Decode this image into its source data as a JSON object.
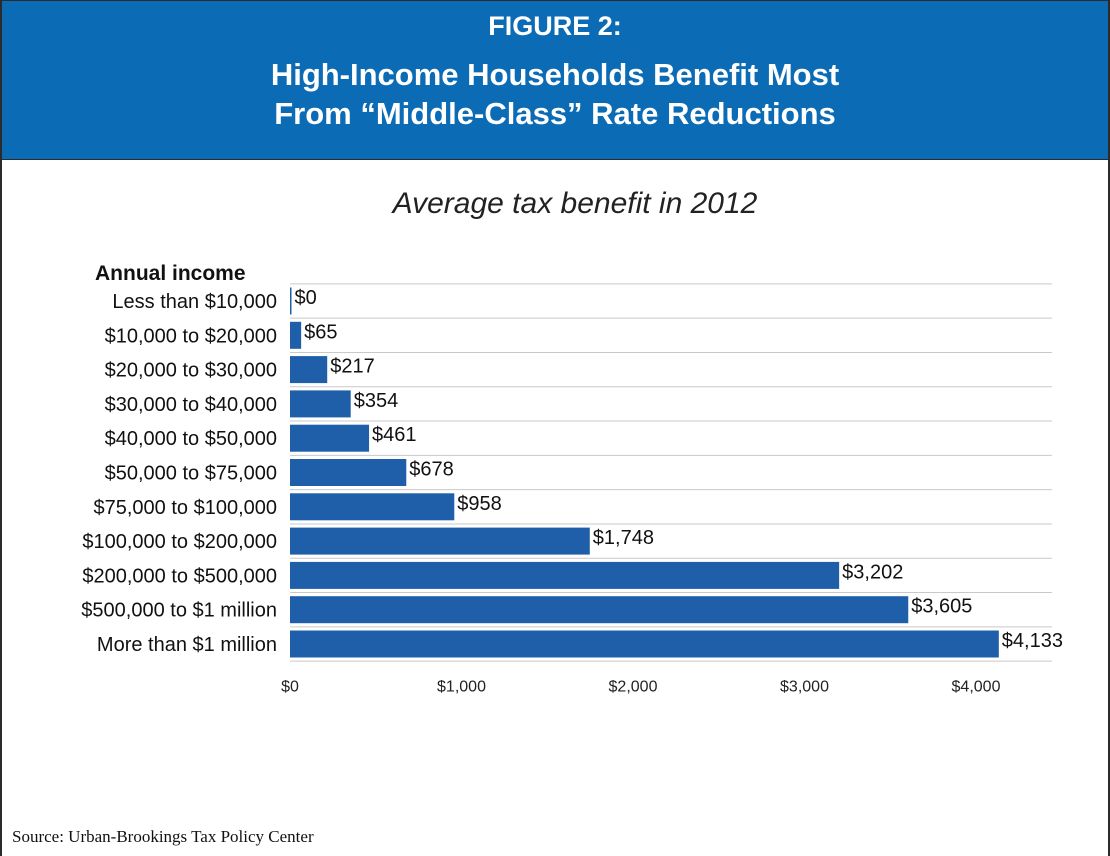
{
  "header": {
    "figure_label": "FIGURE 2:",
    "title_line1": "High-Income Households Benefit Most",
    "title_line2": "From “Middle-Class” Rate Reductions",
    "background_color": "#0c6bb5",
    "text_color": "#ffffff"
  },
  "source": "Source: Urban-Brookings Tax Policy Center",
  "chart_data": {
    "type": "bar",
    "orientation": "horizontal",
    "title": "Average tax benefit in 2012",
    "ylabel": "Annual income",
    "xlabel": "",
    "categories": [
      "Less than $10,000",
      "$10,000 to $20,000",
      "$20,000 to $30,000",
      "$30,000 to $40,000",
      "$40,000 to $50,000",
      "$50,000 to $75,000",
      "$75,000 to $100,000",
      "$100,000 to $200,000",
      "$200,000 to $500,000",
      "$500,000 to $1 million",
      "More than $1 million"
    ],
    "values": [
      0,
      65,
      217,
      354,
      461,
      678,
      958,
      1748,
      3202,
      3605,
      4133
    ],
    "value_labels": [
      "$0",
      "$65",
      "$217",
      "$354",
      "$461",
      "$678",
      "$958",
      "$1,748",
      "$3,202",
      "$3,605",
      "$4,133"
    ],
    "xlim": [
      0,
      4500
    ],
    "xticks": [
      0,
      1000,
      2000,
      3000,
      4000
    ],
    "xtick_labels": [
      "$0",
      "$1,000",
      "$2,000",
      "$3,000",
      "$4,000"
    ],
    "grid": "horizontal lines between bars",
    "bar_color": "#1f5ea8"
  }
}
